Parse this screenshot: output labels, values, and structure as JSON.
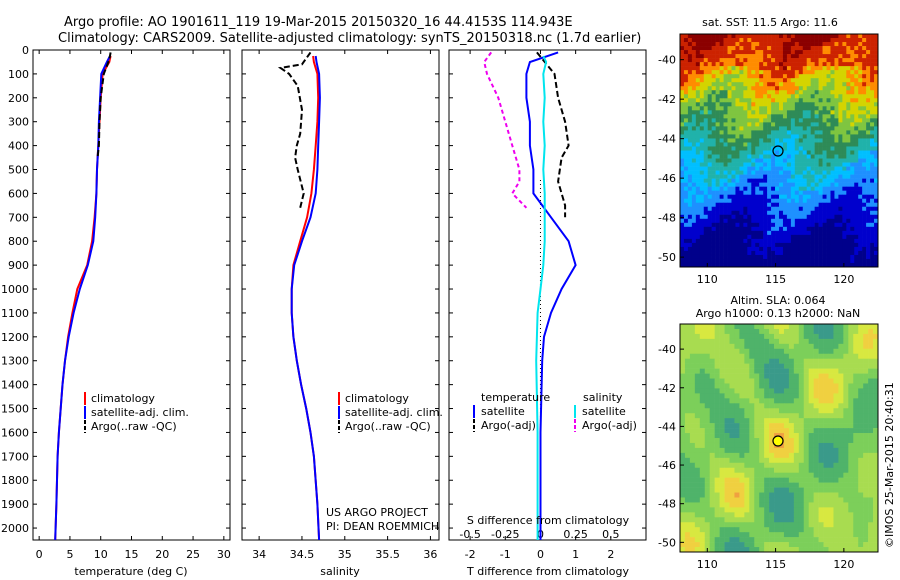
{
  "title": {
    "line1": "Argo profile: AO 1901611_119 19-Mar-2015 20150320_16 44.4153S 114.943E",
    "line2": "Climatology: CARS2009. Satellite-adjusted climatology: synTS_20150318.nc (1.7d earlier)"
  },
  "colors": {
    "climatology": "#ff0000",
    "satellite": "#0000ff",
    "argo": "#000000",
    "satellite_salinity": "#00e5ee",
    "argo_salinity": "#ee00ee"
  },
  "panel_temperature": {
    "xlabel": "temperature (deg C)",
    "legend": [
      "climatology",
      "satellite-adj. clim.",
      "Argo(..raw -QC)"
    ]
  },
  "panel_salinity": {
    "xlabel": "salinity",
    "legend": [
      "climatology",
      "satellite-adj. clim.",
      "Argo(..raw -QC)"
    ],
    "credit1": "US ARGO PROJECT",
    "credit2": "PI: DEAN ROEMMICH"
  },
  "panel_difference": {
    "xlabel_bottom": "T difference from climatology",
    "xlabel_top": "S difference from climatology",
    "legend_temp_head": "temperature",
    "legend_sal_head": "salinity",
    "legend_temp": [
      "satellite",
      "Argo(-adj)"
    ],
    "legend_sal": [
      "satellite",
      "Argo(-adj)"
    ]
  },
  "map_sst": {
    "title": "sat. SST: 11.5 Argo: 11.6",
    "lon_ticks": [
      "110",
      "115",
      "120"
    ],
    "lat_ticks": [
      "-40",
      "-42",
      "-44",
      "-46",
      "-48",
      "-50"
    ]
  },
  "map_sla": {
    "title1": "Altim. SLA: 0.064",
    "title2": "Argo h1000: 0.13 h2000: NaN",
    "lon_ticks": [
      "110",
      "115",
      "120"
    ],
    "lat_ticks": [
      "-40",
      "-42",
      "-44",
      "-46",
      "-48",
      "-50"
    ]
  },
  "watermark": "©IMOS 25-Mar-2015 20:40:31",
  "chart_data": [
    {
      "type": "line",
      "name": "temperature",
      "xlabel": "temperature (deg C)",
      "ylabel": "",
      "xlim": [
        -1,
        31
      ],
      "ylim": [
        2050,
        0
      ],
      "xticks": [
        "0",
        "5",
        "10",
        "15",
        "20",
        "25",
        "30"
      ],
      "yticks": [
        "0",
        "100",
        "200",
        "300",
        "400",
        "500",
        "600",
        "700",
        "800",
        "900",
        "1000",
        "1100",
        "1200",
        "1300",
        "1400",
        "1500",
        "1600",
        "1700",
        "1800",
        "1900",
        "2000"
      ],
      "series": [
        {
          "name": "climatology",
          "x": [
            11.6,
            11.4,
            10.3,
            10.0,
            9.8,
            9.6,
            9.4,
            9.3,
            9.0,
            8.6,
            7.8,
            6.2,
            5.4,
            4.7,
            4.2,
            3.8,
            3.5,
            3.2,
            3.0,
            2.8,
            2.6
          ],
          "y": [
            25,
            50,
            100,
            200,
            300,
            400,
            500,
            600,
            700,
            800,
            900,
            1000,
            1100,
            1200,
            1300,
            1400,
            1500,
            1600,
            1700,
            1900,
            2050
          ]
        },
        {
          "name": "satellite-adj. clim.",
          "x": [
            11.5,
            11.0,
            10.1,
            9.9,
            9.7,
            9.6,
            9.4,
            9.3,
            9.1,
            8.8,
            7.9,
            6.6,
            5.6,
            4.8,
            4.2,
            3.8,
            3.5,
            3.2,
            3.0,
            2.8,
            2.6
          ],
          "y": [
            25,
            50,
            100,
            200,
            300,
            400,
            500,
            600,
            700,
            800,
            900,
            1000,
            1100,
            1200,
            1300,
            1400,
            1500,
            1600,
            1700,
            1900,
            2050
          ]
        },
        {
          "name": "Argo(..raw -QC)",
          "x": [
            11.6,
            11.4,
            10.5,
            10.0,
            9.8,
            9.7,
            9.5
          ],
          "y": [
            10,
            40,
            100,
            200,
            300,
            400,
            450
          ]
        }
      ]
    },
    {
      "type": "line",
      "name": "salinity",
      "xlabel": "salinity",
      "ylabel": "",
      "xlim": [
        33.8,
        36.1
      ],
      "ylim": [
        2050,
        0
      ],
      "xticks": [
        "34",
        "34.5",
        "35",
        "35.5",
        "36"
      ],
      "series": [
        {
          "name": "climatology",
          "x": [
            34.63,
            34.64,
            34.68,
            34.69,
            34.68,
            34.66,
            34.64,
            34.61,
            34.56,
            34.48,
            34.4,
            34.38,
            34.38,
            34.4,
            34.44,
            34.49,
            34.55,
            34.6,
            34.64,
            34.68,
            34.7
          ],
          "y": [
            25,
            50,
            100,
            200,
            300,
            400,
            500,
            600,
            700,
            800,
            900,
            1000,
            1100,
            1200,
            1300,
            1400,
            1500,
            1600,
            1700,
            1900,
            2050
          ]
        },
        {
          "name": "satellite-adj. clim.",
          "x": [
            34.66,
            34.67,
            34.7,
            34.71,
            34.7,
            34.69,
            34.68,
            34.66,
            34.6,
            34.5,
            34.41,
            34.38,
            34.38,
            34.4,
            34.44,
            34.49,
            34.55,
            34.6,
            34.64,
            34.68,
            34.7
          ],
          "y": [
            25,
            50,
            100,
            200,
            300,
            400,
            500,
            600,
            700,
            800,
            900,
            1000,
            1100,
            1200,
            1300,
            1400,
            1500,
            1600,
            1700,
            1900,
            2050
          ]
        },
        {
          "name": "Argo(..raw -QC)",
          "x": [
            34.6,
            34.5,
            34.25,
            34.35,
            34.45,
            34.5,
            34.48,
            34.44,
            34.42,
            34.45,
            34.52,
            34.48
          ],
          "y": [
            10,
            60,
            75,
            100,
            150,
            250,
            350,
            400,
            450,
            500,
            600,
            660
          ]
        }
      ]
    },
    {
      "type": "line",
      "name": "difference",
      "xlabel": "T difference from climatology",
      "ylabel": "",
      "xlim": [
        -2.6,
        3.0
      ],
      "ylim": [
        2050,
        0
      ],
      "xticks": [
        "-2",
        "-1",
        "0",
        "1",
        "2"
      ],
      "xticks_top": [
        "-0.5",
        "-0.25",
        "0",
        "0.25",
        "0.5"
      ],
      "series": [
        {
          "name": "temperature satellite",
          "x": [
            0.5,
            -0.3,
            -0.4,
            -0.4,
            -0.3,
            -0.3,
            -0.2,
            -0.2,
            0.3,
            0.8,
            1.0,
            0.6,
            0.3,
            0.1,
            0.05,
            0.0,
            0.0
          ],
          "y": [
            10,
            50,
            100,
            200,
            300,
            400,
            500,
            600,
            700,
            800,
            900,
            1000,
            1100,
            1200,
            1300,
            1600,
            2050
          ]
        },
        {
          "name": "temperature Argo(-adj)",
          "x": [
            -0.1,
            0.4,
            0.5,
            0.7,
            0.8,
            0.6,
            0.5,
            0.7,
            0.7
          ],
          "y": [
            10,
            100,
            200,
            300,
            400,
            450,
            550,
            650,
            700
          ]
        },
        {
          "name": "salinity satellite",
          "x": [
            0.02,
            0.04,
            0.02,
            0.03,
            0.02,
            0.03,
            0.02,
            0.03,
            0.03,
            0.03,
            0.02,
            0.0,
            -0.02,
            -0.03,
            -0.02,
            -0.02
          ],
          "y": [
            25,
            50,
            100,
            200,
            300,
            400,
            500,
            600,
            700,
            800,
            900,
            1000,
            1100,
            1300,
            1600,
            2050
          ]
        },
        {
          "name": "salinity Argo(-adj)",
          "x": [
            -0.35,
            -0.4,
            -0.38,
            -0.3,
            -0.25,
            -0.2,
            -0.15,
            -0.15,
            -0.2,
            -0.1
          ],
          "y": [
            10,
            50,
            100,
            200,
            300,
            400,
            500,
            550,
            600,
            660
          ]
        }
      ]
    },
    {
      "type": "heatmap",
      "name": "sat. SST map",
      "xlim": [
        108,
        122.5
      ],
      "ylim": [
        -50.5,
        -39
      ],
      "argo_position": {
        "lon": 114.943,
        "lat": -44.4153
      }
    },
    {
      "type": "heatmap",
      "name": "Altim. SLA map",
      "xlim": [
        108,
        122.5
      ],
      "ylim": [
        -50.5,
        -39
      ],
      "argo_position": {
        "lon": 114.943,
        "lat": -44.4153
      }
    }
  ]
}
